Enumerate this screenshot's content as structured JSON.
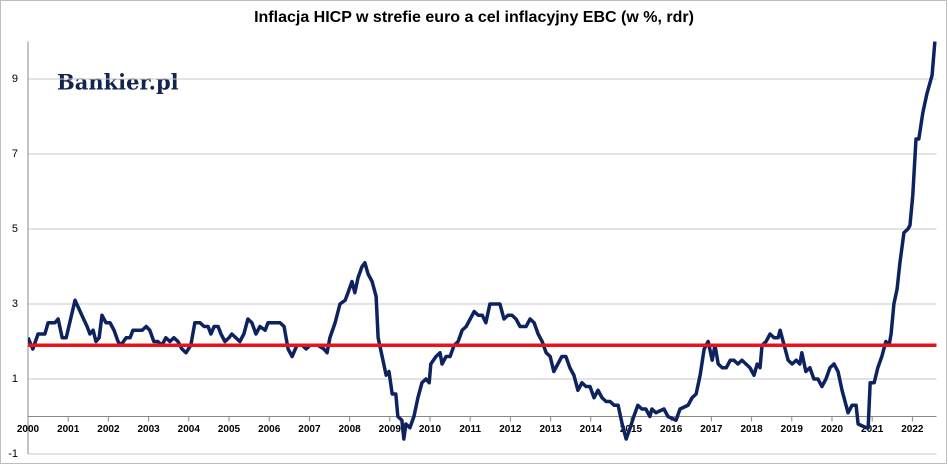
{
  "chart_data": {
    "type": "line",
    "title": "Inflacja HICP w strefie euro a cel inflacyjny EBC (w %, rdr)",
    "watermark": "Bankier.pl",
    "xlim": [
      2000,
      2022.6
    ],
    "xticks": [
      2000,
      2001,
      2002,
      2003,
      2004,
      2005,
      2006,
      2007,
      2008,
      2009,
      2010,
      2011,
      2012,
      2013,
      2014,
      2015,
      2016,
      2017,
      2018,
      2019,
      2020,
      2021,
      2022
    ],
    "ylim": [
      -1,
      10
    ],
    "yticks": [
      -1,
      1,
      3,
      5,
      7,
      9
    ],
    "grid": true,
    "target_line": {
      "value": 1.9,
      "color": "#e8141a"
    },
    "x": [
      2000.0,
      2000.12,
      2000.25,
      2000.42,
      2000.5,
      2000.67,
      2000.75,
      2000.85,
      2000.95,
      2001.17,
      2001.34,
      2001.47,
      2001.54,
      2001.62,
      2001.69,
      2001.77,
      2001.84,
      2001.94,
      2002.04,
      2002.14,
      2002.24,
      2002.31,
      2002.44,
      2002.54,
      2002.61,
      2002.84,
      2002.94,
      2003.03,
      2003.13,
      2003.23,
      2003.33,
      2003.43,
      2003.53,
      2003.63,
      2003.73,
      2003.83,
      2003.93,
      2004.05,
      2004.15,
      2004.28,
      2004.38,
      2004.48,
      2004.55,
      2004.63,
      2004.73,
      2004.8,
      2004.9,
      2005.0,
      2005.07,
      2005.17,
      2005.27,
      2005.37,
      2005.47,
      2005.57,
      2005.67,
      2005.77,
      2005.9,
      2005.97,
      2006.27,
      2006.37,
      2006.47,
      2006.57,
      2006.69,
      2006.82,
      2006.92,
      2007.02,
      2007.21,
      2007.36,
      2007.44,
      2007.51,
      2007.64,
      2007.76,
      2007.89,
      2007.96,
      2008.06,
      2008.13,
      2008.21,
      2008.31,
      2008.38,
      2008.46,
      2008.56,
      2008.66,
      2008.71,
      2008.81,
      2008.91,
      2008.98,
      2009.06,
      2009.15,
      2009.2,
      2009.3,
      2009.35,
      2009.4,
      2009.5,
      2009.6,
      2009.7,
      2009.8,
      2009.9,
      2009.98,
      2010.02,
      2010.15,
      2010.25,
      2010.3,
      2010.4,
      2010.5,
      2010.6,
      2010.7,
      2010.8,
      2010.9,
      2011.0,
      2011.1,
      2011.2,
      2011.3,
      2011.39,
      2011.49,
      2011.74,
      2011.84,
      2011.94,
      2012.04,
      2012.14,
      2012.24,
      2012.39,
      2012.49,
      2012.59,
      2012.69,
      2012.79,
      2012.89,
      2012.99,
      2013.08,
      2013.18,
      2013.28,
      2013.38,
      2013.48,
      2013.58,
      2013.68,
      2013.78,
      2013.88,
      2013.98,
      2014.08,
      2014.18,
      2014.28,
      2014.38,
      2014.48,
      2014.58,
      2014.68,
      2014.78,
      2014.88,
      2014.98,
      2015.07,
      2015.17,
      2015.27,
      2015.37,
      2015.47,
      2015.52,
      2015.62,
      2015.82,
      2015.92,
      2016.12,
      2016.22,
      2016.42,
      2016.52,
      2016.62,
      2016.72,
      2016.82,
      2016.92,
      2017.02,
      2017.09,
      2017.17,
      2017.27,
      2017.37,
      2017.47,
      2017.56,
      2017.66,
      2017.76,
      2017.86,
      2017.96,
      2018.06,
      2018.14,
      2018.21,
      2018.26,
      2018.36,
      2018.46,
      2018.56,
      2018.66,
      2018.71,
      2018.81,
      2018.91,
      2019.01,
      2019.11,
      2019.2,
      2019.25,
      2019.35,
      2019.45,
      2019.55,
      2019.65,
      2019.75,
      2019.85,
      2019.95,
      2020.05,
      2020.15,
      2020.25,
      2020.35,
      2020.4,
      2020.5,
      2020.6,
      2020.65,
      2020.85,
      2020.9,
      2020.95,
      2021.05,
      2021.14,
      2021.24,
      2021.34,
      2021.42,
      2021.47,
      2021.54,
      2021.62,
      2021.69,
      2021.79,
      2021.89,
      2021.94,
      2022.01,
      2022.09,
      2022.16,
      2022.26,
      2022.36,
      2022.49,
      2022.56
    ],
    "series": [
      {
        "color": "#0d2360",
        "values": [
          2.1,
          1.8,
          2.2,
          2.2,
          2.5,
          2.5,
          2.6,
          2.1,
          2.1,
          3.1,
          2.7,
          2.4,
          2.2,
          2.3,
          2.0,
          2.1,
          2.7,
          2.5,
          2.5,
          2.3,
          2.0,
          1.9,
          2.1,
          2.1,
          2.3,
          2.3,
          2.4,
          2.3,
          2.0,
          2.0,
          1.9,
          2.1,
          2.0,
          2.1,
          2.0,
          1.8,
          1.7,
          1.9,
          2.5,
          2.5,
          2.4,
          2.4,
          2.2,
          2.4,
          2.4,
          2.2,
          2.0,
          2.1,
          2.2,
          2.1,
          2.0,
          2.2,
          2.6,
          2.5,
          2.2,
          2.4,
          2.3,
          2.5,
          2.5,
          2.4,
          1.8,
          1.6,
          1.9,
          1.9,
          1.8,
          1.9,
          1.9,
          1.8,
          1.7,
          2.1,
          2.5,
          3.0,
          3.1,
          3.3,
          3.6,
          3.3,
          3.7,
          4.0,
          4.1,
          3.8,
          3.6,
          3.2,
          2.1,
          1.6,
          1.1,
          1.2,
          0.6,
          0.6,
          0.0,
          -0.1,
          -0.6,
          -0.2,
          -0.3,
          0.0,
          0.5,
          0.9,
          1.0,
          0.9,
          1.4,
          1.6,
          1.7,
          1.4,
          1.6,
          1.6,
          1.9,
          2.0,
          2.3,
          2.4,
          2.6,
          2.8,
          2.7,
          2.7,
          2.5,
          3.0,
          3.0,
          2.6,
          2.7,
          2.7,
          2.6,
          2.4,
          2.4,
          2.6,
          2.5,
          2.2,
          2.0,
          1.7,
          1.6,
          1.2,
          1.4,
          1.6,
          1.6,
          1.3,
          1.1,
          0.7,
          0.9,
          0.8,
          0.8,
          0.5,
          0.7,
          0.5,
          0.4,
          0.4,
          0.3,
          0.3,
          -0.2,
          -0.6,
          -0.3,
          0.0,
          0.3,
          0.2,
          0.2,
          0.0,
          0.2,
          0.1,
          0.2,
          0.0,
          -0.1,
          0.2,
          0.3,
          0.5,
          0.6,
          1.1,
          1.8,
          2.0,
          1.5,
          1.9,
          1.4,
          1.3,
          1.3,
          1.5,
          1.5,
          1.4,
          1.5,
          1.4,
          1.3,
          1.1,
          1.4,
          1.3,
          1.9,
          2.0,
          2.2,
          2.1,
          2.1,
          2.3,
          1.9,
          1.5,
          1.4,
          1.5,
          1.4,
          1.7,
          1.2,
          1.3,
          1.0,
          1.0,
          0.8,
          1.0,
          1.3,
          1.4,
          1.2,
          0.7,
          0.3,
          0.1,
          0.3,
          0.3,
          -0.2,
          -0.3,
          -0.3,
          0.9,
          0.9,
          1.3,
          1.6,
          2.0,
          1.9,
          2.2,
          3.0,
          3.4,
          4.1,
          4.9,
          5.0,
          5.1,
          5.9,
          7.4,
          7.4,
          8.1,
          8.6,
          9.1,
          10.0
        ]
      }
    ]
  }
}
